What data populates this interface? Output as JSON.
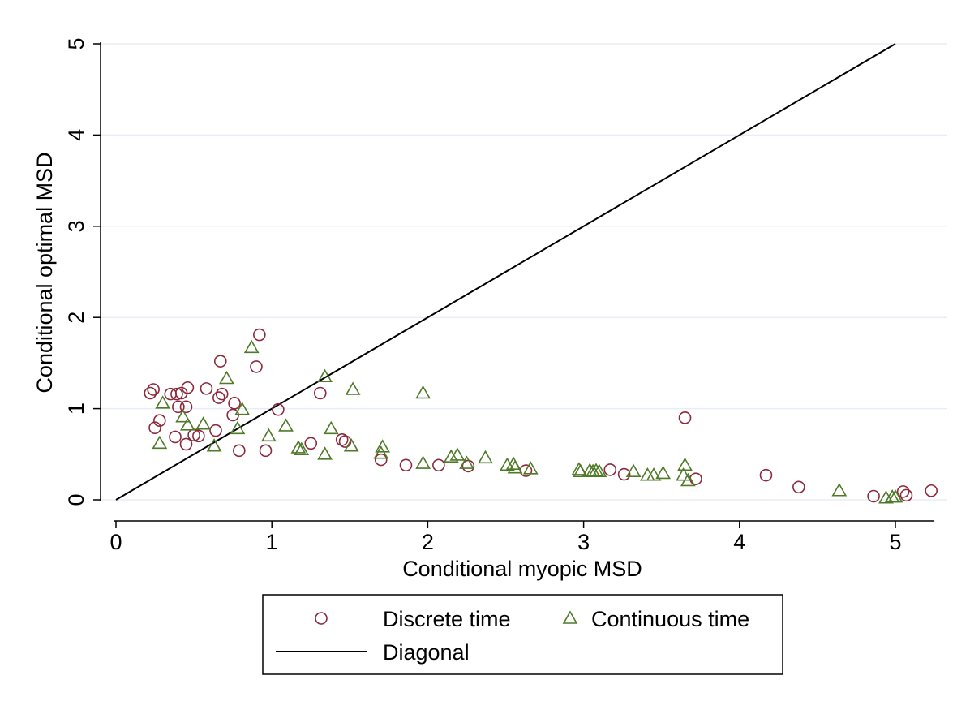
{
  "chart_data": {
    "type": "scatter",
    "title": "",
    "xlabel": "Conditional myopic MSD",
    "ylabel": "Conditional optimal MSD",
    "xlim": [
      0,
      5.25
    ],
    "ylim": [
      0,
      5
    ],
    "x_ticks": [
      0,
      1,
      2,
      3,
      4,
      5
    ],
    "y_ticks": [
      0,
      1,
      2,
      3,
      4,
      5
    ],
    "x_tick_labels": [
      "0",
      "1",
      "2",
      "3",
      "4",
      "5"
    ],
    "y_tick_labels": [
      "0",
      "1",
      "2",
      "3",
      "4",
      "5"
    ],
    "grid": "horizontal",
    "legend_position": "bottom",
    "colors": {
      "discrete": "#8b2a3c",
      "continuous": "#4f7a28",
      "diagonal": "#000000",
      "grid": "#e8eef4"
    },
    "series": [
      {
        "name": "Discrete time",
        "marker": "circle",
        "points": [
          [
            0.22,
            1.17
          ],
          [
            0.24,
            1.21
          ],
          [
            0.25,
            0.79
          ],
          [
            0.28,
            0.87
          ],
          [
            0.35,
            1.16
          ],
          [
            0.38,
            0.69
          ],
          [
            0.39,
            1.16
          ],
          [
            0.4,
            1.02
          ],
          [
            0.42,
            1.17
          ],
          [
            0.45,
            1.02
          ],
          [
            0.45,
            0.61
          ],
          [
            0.46,
            1.23
          ],
          [
            0.5,
            0.71
          ],
          [
            0.53,
            0.7
          ],
          [
            0.58,
            1.22
          ],
          [
            0.64,
            0.76
          ],
          [
            0.66,
            1.12
          ],
          [
            0.67,
            1.52
          ],
          [
            0.68,
            1.16
          ],
          [
            0.75,
            0.93
          ],
          [
            0.76,
            1.06
          ],
          [
            0.79,
            0.54
          ],
          [
            0.9,
            1.46
          ],
          [
            0.92,
            1.81
          ],
          [
            0.96,
            0.54
          ],
          [
            1.04,
            0.99
          ],
          [
            1.25,
            0.62
          ],
          [
            1.31,
            1.17
          ],
          [
            1.45,
            0.66
          ],
          [
            1.47,
            0.64
          ],
          [
            1.7,
            0.44
          ],
          [
            1.86,
            0.38
          ],
          [
            2.07,
            0.38
          ],
          [
            2.26,
            0.37
          ],
          [
            2.63,
            0.32
          ],
          [
            3.17,
            0.33
          ],
          [
            3.26,
            0.28
          ],
          [
            3.65,
            0.9
          ],
          [
            3.72,
            0.23
          ],
          [
            4.17,
            0.27
          ],
          [
            4.38,
            0.14
          ],
          [
            4.86,
            0.04
          ],
          [
            5.05,
            0.09
          ],
          [
            5.07,
            0.05
          ],
          [
            5.23,
            0.1
          ]
        ]
      },
      {
        "name": "Continuous time",
        "marker": "triangle",
        "points": [
          [
            0.28,
            0.62
          ],
          [
            0.3,
            1.06
          ],
          [
            0.43,
            0.91
          ],
          [
            0.46,
            0.82
          ],
          [
            0.56,
            0.83
          ],
          [
            0.63,
            0.59
          ],
          [
            0.71,
            1.33
          ],
          [
            0.78,
            0.78
          ],
          [
            0.81,
            0.99
          ],
          [
            0.87,
            1.67
          ],
          [
            0.98,
            0.7
          ],
          [
            1.09,
            0.81
          ],
          [
            1.17,
            0.57
          ],
          [
            1.19,
            0.55
          ],
          [
            1.34,
            0.5
          ],
          [
            1.34,
            1.35
          ],
          [
            1.38,
            0.78
          ],
          [
            1.51,
            0.59
          ],
          [
            1.52,
            1.21
          ],
          [
            1.7,
            0.51
          ],
          [
            1.71,
            0.58
          ],
          [
            1.97,
            1.17
          ],
          [
            1.97,
            0.4
          ],
          [
            2.15,
            0.47
          ],
          [
            2.19,
            0.49
          ],
          [
            2.25,
            0.4
          ],
          [
            2.37,
            0.46
          ],
          [
            2.51,
            0.38
          ],
          [
            2.55,
            0.39
          ],
          [
            2.56,
            0.35
          ],
          [
            2.66,
            0.34
          ],
          [
            2.97,
            0.33
          ],
          [
            2.98,
            0.31
          ],
          [
            3.04,
            0.32
          ],
          [
            3.06,
            0.31
          ],
          [
            3.08,
            0.32
          ],
          [
            3.1,
            0.31
          ],
          [
            3.32,
            0.31
          ],
          [
            3.41,
            0.27
          ],
          [
            3.45,
            0.27
          ],
          [
            3.51,
            0.29
          ],
          [
            3.64,
            0.27
          ],
          [
            3.65,
            0.38
          ],
          [
            3.67,
            0.21
          ],
          [
            4.64,
            0.1
          ],
          [
            4.94,
            0.02
          ],
          [
            4.98,
            0.03
          ],
          [
            5.0,
            0.03
          ]
        ]
      },
      {
        "name": "Diagonal",
        "marker": "line",
        "points": [
          [
            0,
            0
          ],
          [
            5,
            5
          ]
        ]
      }
    ]
  },
  "legend": {
    "items": [
      {
        "label": "Discrete time",
        "symbol": "circle"
      },
      {
        "label": "Continuous time",
        "symbol": "triangle"
      },
      {
        "label": "Diagonal",
        "symbol": "line"
      }
    ]
  }
}
